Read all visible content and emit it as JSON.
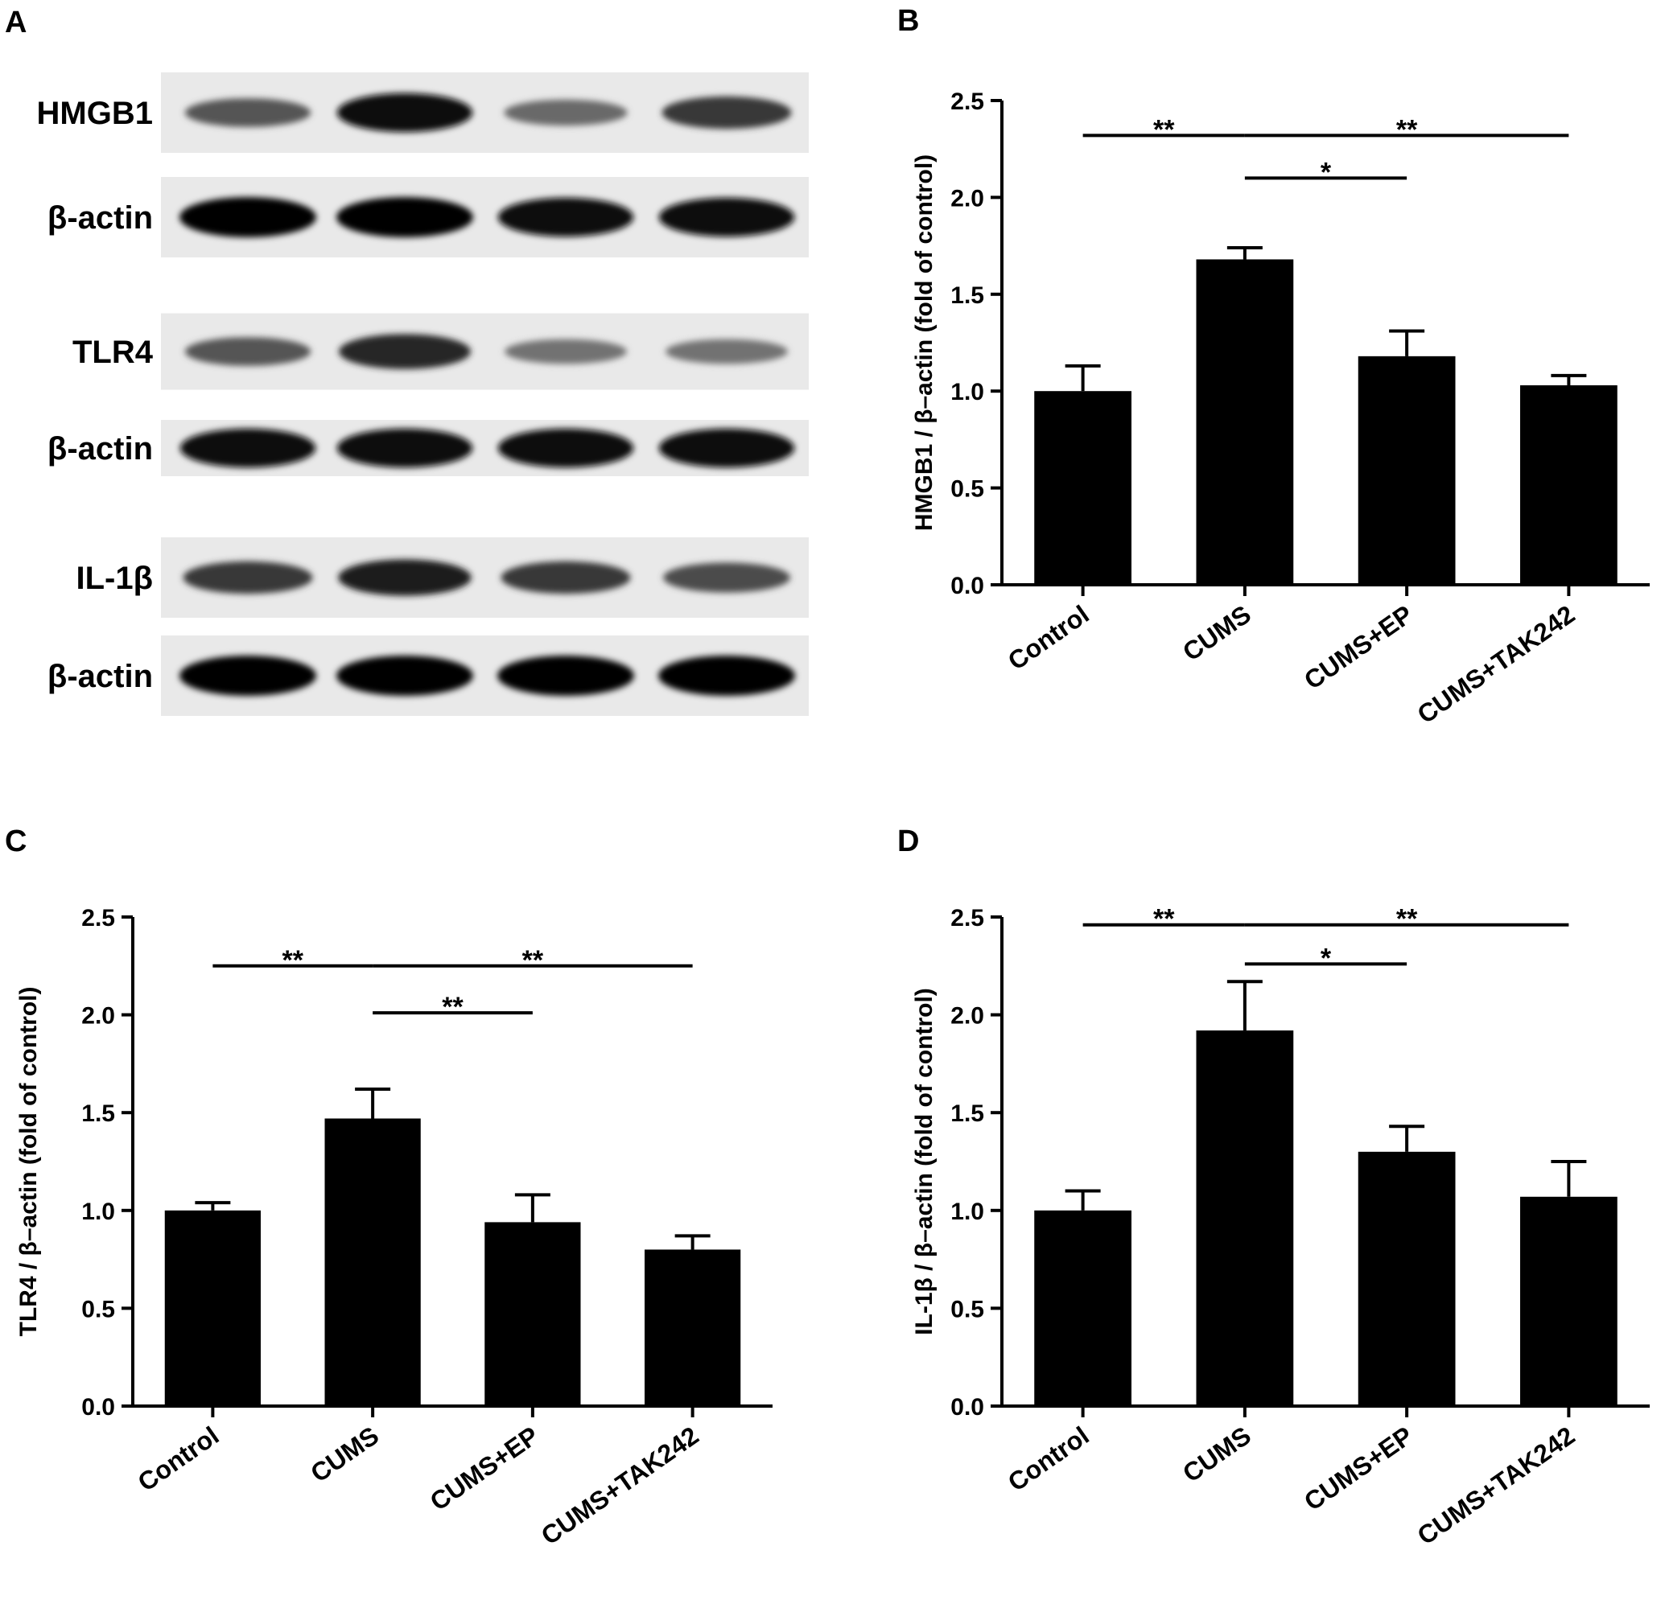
{
  "figure": {
    "panel_letters": [
      "A",
      "B",
      "C",
      "D"
    ],
    "bar_color": "#000000"
  },
  "blot": {
    "lane_count": 4,
    "rows": [
      {
        "label": "HMGB1",
        "intensities": [
          0.55,
          0.95,
          0.45,
          0.7
        ]
      },
      {
        "label": "β-actin",
        "intensities": [
          1.0,
          1.0,
          0.95,
          0.95
        ]
      },
      {
        "label": "TLR4",
        "intensities": [
          0.55,
          0.8,
          0.4,
          0.4
        ]
      },
      {
        "label": "β-actin",
        "intensities": [
          0.95,
          0.95,
          0.95,
          0.95
        ]
      },
      {
        "label": "IL-1β",
        "intensities": [
          0.7,
          0.85,
          0.7,
          0.6
        ]
      },
      {
        "label": "β-actin",
        "intensities": [
          1.0,
          1.0,
          1.0,
          1.0
        ]
      }
    ]
  },
  "chart_data": [
    {
      "panel": "B",
      "type": "bar",
      "categories": [
        "Control",
        "CUMS",
        "CUMS+EP",
        "CUMS+TAK242"
      ],
      "values": [
        1.0,
        1.68,
        1.18,
        1.03
      ],
      "errors": [
        0.13,
        0.06,
        0.13,
        0.05
      ],
      "ylabel": "HMGB1 / β–actin (fold of control)",
      "ylim": [
        0,
        2.5
      ],
      "yticks": [
        "0.0",
        "0.5",
        "1.0",
        "1.5",
        "2.0",
        "2.5"
      ],
      "significance": [
        {
          "from": 0,
          "to": 1,
          "level": 2.32,
          "label": "**"
        },
        {
          "from": 1,
          "to": 3,
          "level": 2.32,
          "label": "**"
        },
        {
          "from": 1,
          "to": 2,
          "level": 2.1,
          "label": "*"
        }
      ]
    },
    {
      "panel": "C",
      "type": "bar",
      "categories": [
        "Control",
        "CUMS",
        "CUMS+EP",
        "CUMS+TAK242"
      ],
      "values": [
        1.0,
        1.47,
        0.94,
        0.8
      ],
      "errors": [
        0.04,
        0.15,
        0.14,
        0.07
      ],
      "ylabel": "TLR4 / β–actin (fold of control)",
      "ylim": [
        0,
        2.5
      ],
      "yticks": [
        "0.0",
        "0.5",
        "1.0",
        "1.5",
        "2.0",
        "2.5"
      ],
      "significance": [
        {
          "from": 0,
          "to": 1,
          "level": 2.25,
          "label": "**"
        },
        {
          "from": 1,
          "to": 3,
          "level": 2.25,
          "label": "**"
        },
        {
          "from": 1,
          "to": 2,
          "level": 2.01,
          "label": "**"
        }
      ]
    },
    {
      "panel": "D",
      "type": "bar",
      "categories": [
        "Control",
        "CUMS",
        "CUMS+EP",
        "CUMS+TAK242"
      ],
      "values": [
        1.0,
        1.92,
        1.3,
        1.07
      ],
      "errors": [
        0.1,
        0.25,
        0.13,
        0.18
      ],
      "ylabel": "IL-1β / β–actin (fold of control)",
      "ylim": [
        0,
        2.5
      ],
      "yticks": [
        "0.0",
        "0.5",
        "1.0",
        "1.5",
        "2.0",
        "2.5"
      ],
      "significance": [
        {
          "from": 0,
          "to": 1,
          "level": 2.46,
          "label": "**"
        },
        {
          "from": 1,
          "to": 3,
          "level": 2.46,
          "label": "**"
        },
        {
          "from": 1,
          "to": 2,
          "level": 2.26,
          "label": "*"
        }
      ]
    }
  ]
}
